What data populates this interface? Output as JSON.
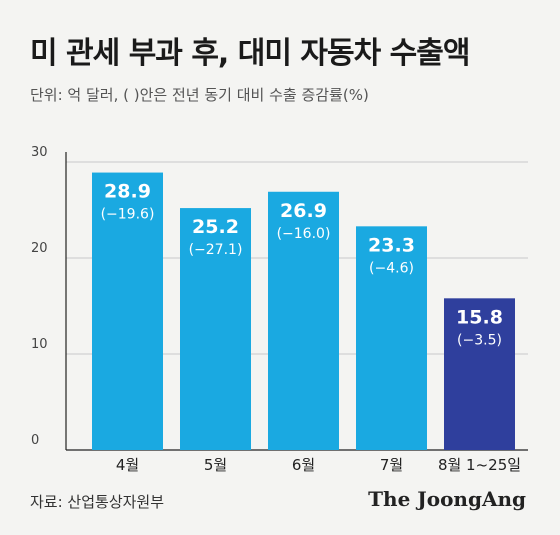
{
  "title": "미 관세 부과 후, 대미 자동차 수출액",
  "subtitle": "단위: 억 달러, ( )안은 전년 동기 대비 수출 증감률(%)",
  "source": "자료: 산업통상자원부",
  "logo": "The JoongAng",
  "colors": {
    "bar": "#1aa9e1",
    "bar_highlight": "#2f3f9d",
    "grid": "#c9c9c9",
    "axis": "#222222",
    "background": "#f4f4f2"
  },
  "chart_data": {
    "type": "bar",
    "categories": [
      "4월",
      "5월",
      "6월",
      "7월",
      "8월 1~25일"
    ],
    "values": [
      28.9,
      25.2,
      26.9,
      23.3,
      15.8
    ],
    "value_labels": [
      "28.9",
      "25.2",
      "26.9",
      "23.3",
      "15.8"
    ],
    "change_labels": [
      "(−19.6)",
      "(−27.1)",
      "(−16.0)",
      "(−4.6)",
      "(−3.5)"
    ],
    "change_rates": [
      -19.6,
      -27.1,
      -16.0,
      -4.6,
      -3.5
    ],
    "highlight_index": 4,
    "yticks": [
      "0",
      "10",
      "20",
      "30"
    ],
    "ylim": [
      0,
      30
    ],
    "grid": true
  }
}
